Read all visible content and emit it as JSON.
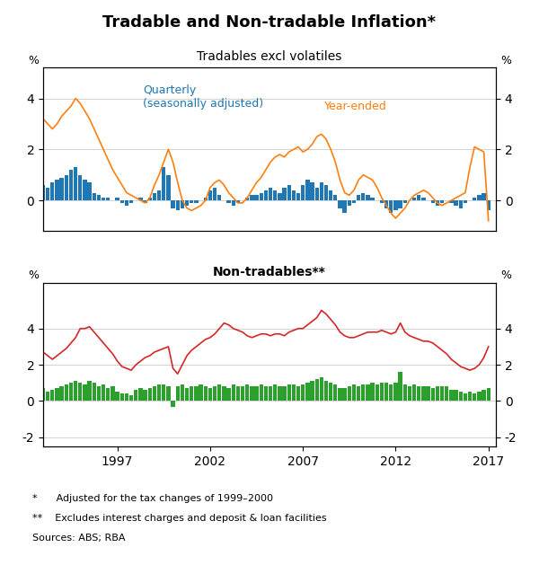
{
  "title": "Tradable and Non-tradable Inflation*",
  "footnotes": [
    "*      Adjusted for the tax changes of 1999–2000",
    "**    Excludes interest charges and deposit & loan facilities",
    "Sources: ABS; RBA"
  ],
  "chart_data": [
    {
      "type": "bar",
      "title": "Tradables excl volatiles",
      "ylabel": "%",
      "y2label": "%",
      "annotations": [
        "Quarterly\n(seasonally adjusted)",
        "Year-ended"
      ],
      "x": [
        1993.0,
        1993.25,
        1993.5,
        1993.75,
        1994.0,
        1994.25,
        1994.5,
        1994.75,
        1995.0,
        1995.25,
        1995.5,
        1995.75,
        1996.0,
        1996.25,
        1996.5,
        1996.75,
        1997.0,
        1997.25,
        1997.5,
        1997.75,
        1998.0,
        1998.25,
        1998.5,
        1998.75,
        1999.0,
        1999.25,
        1999.5,
        1999.75,
        2000.0,
        2000.25,
        2000.5,
        2000.75,
        2001.0,
        2001.25,
        2001.5,
        2001.75,
        2002.0,
        2002.25,
        2002.5,
        2002.75,
        2003.0,
        2003.25,
        2003.5,
        2003.75,
        2004.0,
        2004.25,
        2004.5,
        2004.75,
        2005.0,
        2005.25,
        2005.5,
        2005.75,
        2006.0,
        2006.25,
        2006.5,
        2006.75,
        2007.0,
        2007.25,
        2007.5,
        2007.75,
        2008.0,
        2008.25,
        2008.5,
        2008.75,
        2009.0,
        2009.25,
        2009.5,
        2009.75,
        2010.0,
        2010.25,
        2010.5,
        2010.75,
        2011.0,
        2011.25,
        2011.5,
        2011.75,
        2012.0,
        2012.25,
        2012.5,
        2012.75,
        2013.0,
        2013.25,
        2013.5,
        2013.75,
        2014.0,
        2014.25,
        2014.5,
        2014.75,
        2015.0,
        2015.25,
        2015.5,
        2015.75,
        2016.0,
        2016.25,
        2016.5,
        2016.75,
        2017.0
      ],
      "series": [
        {
          "type": "bar",
          "color": "#1f77b4",
          "values": [
            0.6,
            0.5,
            0.7,
            0.8,
            0.9,
            1.0,
            1.2,
            1.3,
            1.0,
            0.8,
            0.7,
            0.3,
            0.2,
            0.1,
            0.1,
            0.0,
            0.1,
            -0.1,
            -0.2,
            -0.1,
            0.0,
            0.1,
            -0.1,
            0.1,
            0.3,
            0.4,
            1.3,
            1.0,
            -0.3,
            -0.4,
            -0.3,
            -0.2,
            -0.1,
            -0.1,
            0.0,
            0.1,
            0.4,
            0.5,
            0.2,
            0.0,
            -0.1,
            -0.2,
            -0.1,
            0.0,
            0.1,
            0.2,
            0.2,
            0.3,
            0.4,
            0.5,
            0.4,
            0.3,
            0.5,
            0.6,
            0.4,
            0.3,
            0.6,
            0.8,
            0.7,
            0.5,
            0.7,
            0.6,
            0.4,
            0.2,
            -0.3,
            -0.5,
            -0.2,
            -0.1,
            0.2,
            0.3,
            0.2,
            0.1,
            0.0,
            -0.1,
            -0.3,
            -0.5,
            -0.4,
            -0.3,
            -0.1,
            0.0,
            0.1,
            0.2,
            0.1,
            0.0,
            -0.1,
            -0.2,
            -0.1,
            0.0,
            -0.1,
            -0.2,
            -0.3,
            -0.1,
            0.0,
            0.1,
            0.2,
            0.3,
            -0.4
          ]
        },
        {
          "type": "line",
          "color": "#ff7f0e",
          "values": [
            3.2,
            3.0,
            2.8,
            3.0,
            3.3,
            3.5,
            3.7,
            4.0,
            3.8,
            3.5,
            3.2,
            2.8,
            2.4,
            2.0,
            1.6,
            1.2,
            0.9,
            0.6,
            0.3,
            0.2,
            0.1,
            0.0,
            -0.1,
            0.1,
            0.6,
            1.0,
            1.5,
            2.0,
            1.5,
            0.7,
            0.0,
            -0.3,
            -0.4,
            -0.3,
            -0.2,
            0.0,
            0.5,
            0.7,
            0.8,
            0.6,
            0.3,
            0.1,
            -0.1,
            -0.1,
            0.1,
            0.4,
            0.7,
            0.9,
            1.2,
            1.5,
            1.7,
            1.8,
            1.7,
            1.9,
            2.0,
            2.1,
            1.9,
            2.0,
            2.2,
            2.5,
            2.6,
            2.4,
            2.0,
            1.5,
            0.8,
            0.3,
            0.2,
            0.4,
            0.8,
            1.0,
            0.9,
            0.8,
            0.5,
            0.1,
            -0.2,
            -0.5,
            -0.7,
            -0.5,
            -0.3,
            0.0,
            0.2,
            0.3,
            0.4,
            0.3,
            0.1,
            -0.1,
            -0.2,
            -0.1,
            0.0,
            0.1,
            0.2,
            0.3,
            1.3,
            2.1,
            2.0,
            1.9,
            -0.8
          ]
        }
      ],
      "xlim": [
        1993.0,
        2017.4
      ],
      "xticks": [],
      "ylim": [
        -1.2,
        5.2
      ],
      "yticks": [
        0,
        2,
        4
      ],
      "y2lim": [
        -1.2,
        5.2
      ],
      "y2ticks": [
        0,
        2,
        4
      ],
      "grid": true,
      "tick_labels": "y"
    },
    {
      "type": "bar",
      "title": "Non-tradables**",
      "ylabel": "%",
      "y2label": "%",
      "x": [
        1993.0,
        1993.25,
        1993.5,
        1993.75,
        1994.0,
        1994.25,
        1994.5,
        1994.75,
        1995.0,
        1995.25,
        1995.5,
        1995.75,
        1996.0,
        1996.25,
        1996.5,
        1996.75,
        1997.0,
        1997.25,
        1997.5,
        1997.75,
        1998.0,
        1998.25,
        1998.5,
        1998.75,
        1999.0,
        1999.25,
        1999.5,
        1999.75,
        2000.0,
        2000.25,
        2000.5,
        2000.75,
        2001.0,
        2001.25,
        2001.5,
        2001.75,
        2002.0,
        2002.25,
        2002.5,
        2002.75,
        2003.0,
        2003.25,
        2003.5,
        2003.75,
        2004.0,
        2004.25,
        2004.5,
        2004.75,
        2005.0,
        2005.25,
        2005.5,
        2005.75,
        2006.0,
        2006.25,
        2006.5,
        2006.75,
        2007.0,
        2007.25,
        2007.5,
        2007.75,
        2008.0,
        2008.25,
        2008.5,
        2008.75,
        2009.0,
        2009.25,
        2009.5,
        2009.75,
        2010.0,
        2010.25,
        2010.5,
        2010.75,
        2011.0,
        2011.25,
        2011.5,
        2011.75,
        2012.0,
        2012.25,
        2012.5,
        2012.75,
        2013.0,
        2013.25,
        2013.5,
        2013.75,
        2014.0,
        2014.25,
        2014.5,
        2014.75,
        2015.0,
        2015.25,
        2015.5,
        2015.75,
        2016.0,
        2016.25,
        2016.5,
        2016.75,
        2017.0
      ],
      "series": [
        {
          "type": "bar",
          "color": "#2ca02c",
          "values": [
            0.7,
            0.5,
            0.6,
            0.7,
            0.8,
            0.9,
            1.0,
            1.1,
            1.0,
            0.9,
            1.1,
            1.0,
            0.8,
            0.9,
            0.7,
            0.8,
            0.5,
            0.4,
            0.4,
            0.3,
            0.6,
            0.7,
            0.6,
            0.7,
            0.8,
            0.9,
            0.9,
            0.8,
            -0.3,
            0.8,
            0.9,
            0.7,
            0.8,
            0.8,
            0.9,
            0.8,
            0.7,
            0.8,
            0.9,
            0.8,
            0.7,
            0.9,
            0.8,
            0.8,
            0.9,
            0.8,
            0.8,
            0.9,
            0.8,
            0.8,
            0.9,
            0.8,
            0.8,
            0.9,
            0.9,
            0.8,
            0.9,
            1.0,
            1.1,
            1.2,
            1.3,
            1.1,
            1.0,
            0.9,
            0.7,
            0.7,
            0.8,
            0.9,
            0.8,
            0.9,
            0.9,
            1.0,
            0.9,
            1.0,
            1.0,
            0.9,
            1.0,
            1.6,
            0.9,
            0.8,
            0.9,
            0.8,
            0.8,
            0.8,
            0.7,
            0.8,
            0.8,
            0.8,
            0.6,
            0.6,
            0.5,
            0.4,
            0.5,
            0.4,
            0.5,
            0.6,
            0.7
          ]
        },
        {
          "type": "line",
          "color": "#d62728",
          "values": [
            2.7,
            2.5,
            2.3,
            2.5,
            2.7,
            2.9,
            3.2,
            3.5,
            4.0,
            4.0,
            4.1,
            3.8,
            3.5,
            3.2,
            2.9,
            2.6,
            2.2,
            1.9,
            1.8,
            1.7,
            2.0,
            2.2,
            2.4,
            2.5,
            2.7,
            2.8,
            2.9,
            3.0,
            1.8,
            1.5,
            2.0,
            2.5,
            2.8,
            3.0,
            3.2,
            3.4,
            3.5,
            3.7,
            4.0,
            4.3,
            4.2,
            4.0,
            3.9,
            3.8,
            3.6,
            3.5,
            3.6,
            3.7,
            3.7,
            3.6,
            3.7,
            3.7,
            3.6,
            3.8,
            3.9,
            4.0,
            4.0,
            4.2,
            4.4,
            4.6,
            5.0,
            4.8,
            4.5,
            4.2,
            3.8,
            3.6,
            3.5,
            3.5,
            3.6,
            3.7,
            3.8,
            3.8,
            3.8,
            3.9,
            3.8,
            3.7,
            3.8,
            4.3,
            3.8,
            3.6,
            3.5,
            3.4,
            3.3,
            3.3,
            3.2,
            3.0,
            2.8,
            2.6,
            2.3,
            2.1,
            1.9,
            1.8,
            1.7,
            1.8,
            2.0,
            2.4,
            3.0
          ]
        }
      ],
      "xlim": [
        1993.0,
        2017.4
      ],
      "xticks": [
        1997,
        2002,
        2007,
        2012,
        2017
      ],
      "ylim": [
        -2.5,
        6.5
      ],
      "yticks": [
        -2,
        0,
        2,
        4
      ],
      "y2lim": [
        -2.5,
        6.5
      ],
      "y2ticks": [
        -2,
        0,
        2,
        4
      ],
      "grid": true
    }
  ]
}
